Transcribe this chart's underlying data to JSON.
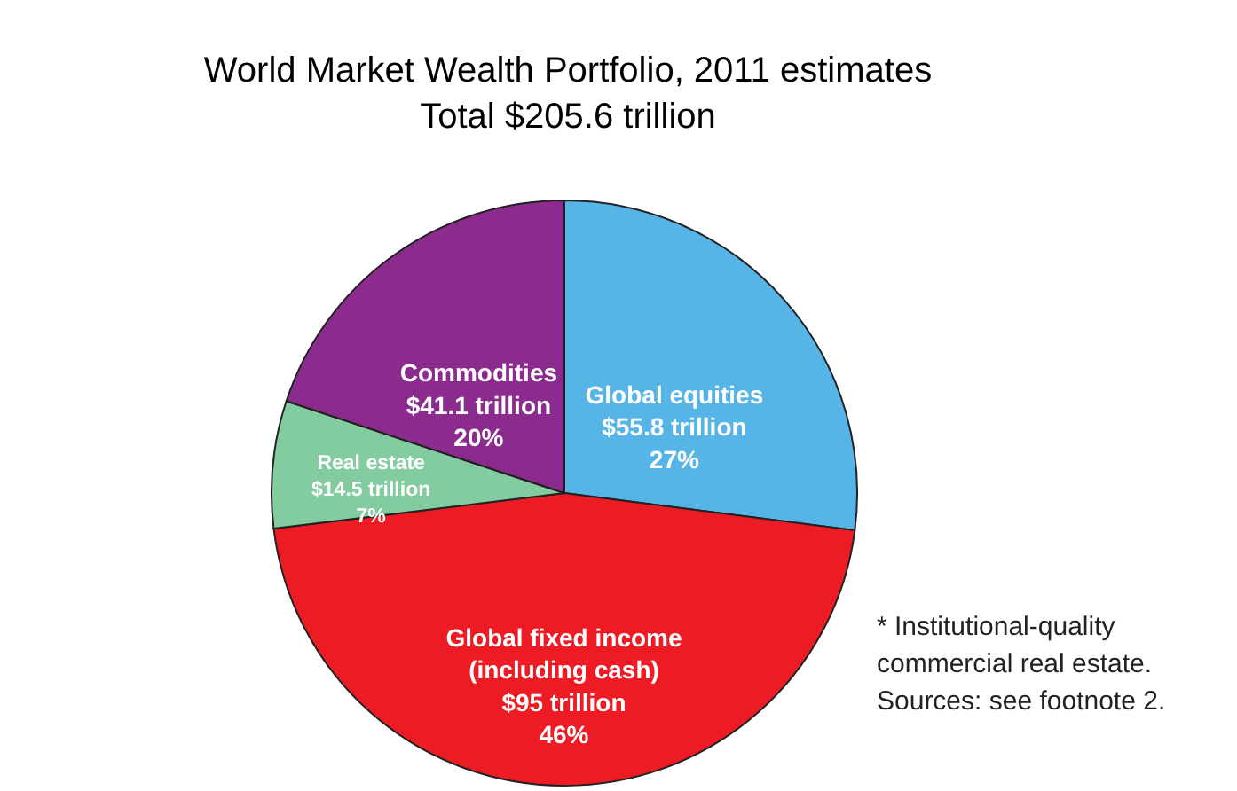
{
  "chart_data": {
    "type": "pie",
    "title": "World Market Wealth Portfolio, 2011 estimates",
    "subtitle": "Total $205.6 trillion",
    "categories": [
      "Global equities",
      "Global fixed income\n(including cash)",
      "Real estate",
      "Commodities"
    ],
    "values": [
      55.8,
      95,
      14.5,
      41.1
    ],
    "value_labels": [
      "$55.8 trillion\n27%",
      "$95 trillion\n46%",
      "$14.5 trillion\n7%",
      "$41.1 trillion\n20%"
    ],
    "colors": [
      "#56b4e6",
      "#ed1c24",
      "#82cca0",
      "#8a2b8d"
    ],
    "annotations": [
      "* Institutional-quality",
      "commercial real estate.",
      "Sources: see footnote 2."
    ]
  }
}
